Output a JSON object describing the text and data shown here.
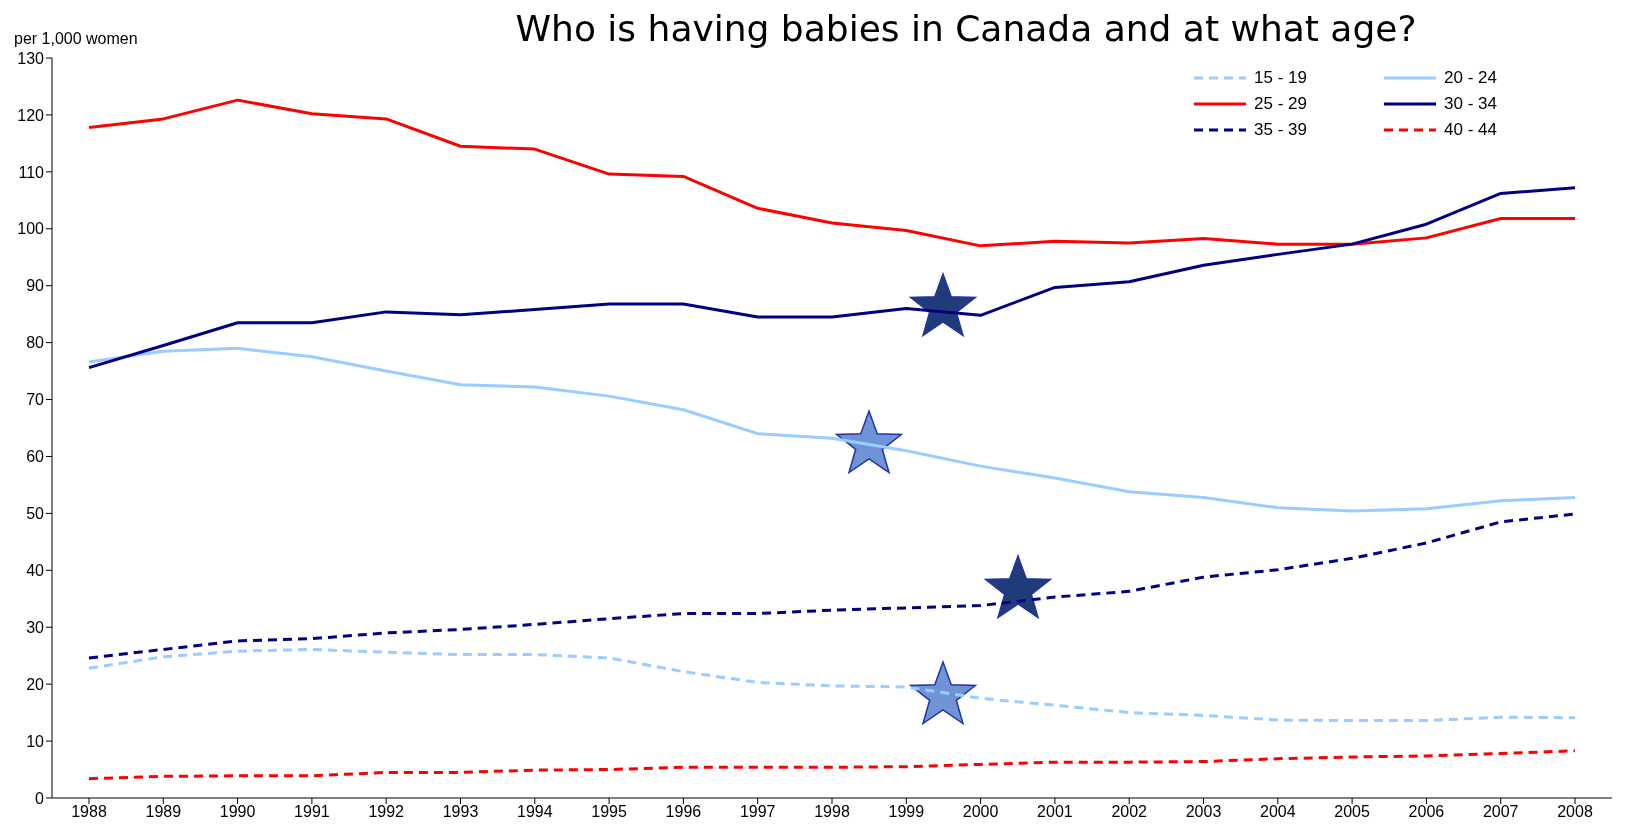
{
  "chart_data": {
    "type": "line",
    "title": "Who is having babies in Canada and at what age?",
    "ylabel": "per 1,000 women",
    "categories": [
      "1988",
      "1989",
      "1990",
      "1991",
      "1992",
      "1993",
      "1994",
      "1995",
      "1996",
      "1997",
      "1998",
      "1999",
      "2000",
      "2001",
      "2002",
      "2003",
      "2004",
      "2005",
      "2006",
      "2007",
      "2008"
    ],
    "ylim": [
      0,
      130
    ],
    "yticks": [
      0,
      10,
      20,
      30,
      40,
      50,
      60,
      70,
      80,
      90,
      100,
      110,
      120,
      130
    ],
    "legend": "top right",
    "series": [
      {
        "name": "15 - 19",
        "color": "#99ccff",
        "line_style": "dashed",
        "values": [
          22.8,
          24.8,
          25.8,
          26.1,
          25.6,
          25.2,
          25.2,
          24.6,
          22.2,
          20.3,
          19.7,
          19.5,
          17.5,
          16.3,
          15,
          14.5,
          13.7,
          13.6,
          13.6,
          14.2,
          14.1
        ]
      },
      {
        "name": "20 - 24",
        "color": "#99ccff",
        "line_style": "solid",
        "values": [
          76.6,
          78.5,
          79,
          77.5,
          75,
          72.6,
          72.2,
          70.6,
          68.2,
          64,
          63.2,
          61,
          58.3,
          56.2,
          53.8,
          52.8,
          51,
          50.4,
          50.8,
          52.2,
          52.8
        ]
      },
      {
        "name": "25 - 29",
        "color": "#ff0000",
        "line_style": "solid",
        "values": [
          117.8,
          119.3,
          122.6,
          120.2,
          119.3,
          114.5,
          114,
          109.6,
          109.2,
          103.6,
          101,
          99.7,
          97,
          97.8,
          97.5,
          98.3,
          97.3,
          97.3,
          98.4,
          101.8,
          101.8
        ]
      },
      {
        "name": "30 - 34",
        "color": "#000080",
        "line_style": "solid",
        "values": [
          75.6,
          79.5,
          83.5,
          83.5,
          85.4,
          84.9,
          85.8,
          86.8,
          86.8,
          84.5,
          84.5,
          86,
          84.8,
          89.7,
          90.7,
          93.6,
          95.5,
          97.3,
          100.8,
          106.2,
          107.2
        ]
      },
      {
        "name": "35 - 39",
        "color": "#000080",
        "line_style": "dashed",
        "values": [
          24.6,
          26.1,
          27.6,
          28,
          29,
          29.6,
          30.5,
          31.5,
          32.4,
          32.4,
          33,
          33.4,
          33.8,
          35.3,
          36.3,
          38.8,
          40.1,
          42.1,
          44.8,
          48.5,
          49.9
        ]
      },
      {
        "name": "40 - 44",
        "color": "#ff0000",
        "line_style": "dashed",
        "values": [
          3.4,
          3.8,
          3.9,
          3.9,
          4.5,
          4.5,
          4.9,
          5,
          5.4,
          5.4,
          5.4,
          5.5,
          5.9,
          6.3,
          6.3,
          6.4,
          6.9,
          7.2,
          7.4,
          7.8,
          8.3
        ]
      }
    ]
  }
}
